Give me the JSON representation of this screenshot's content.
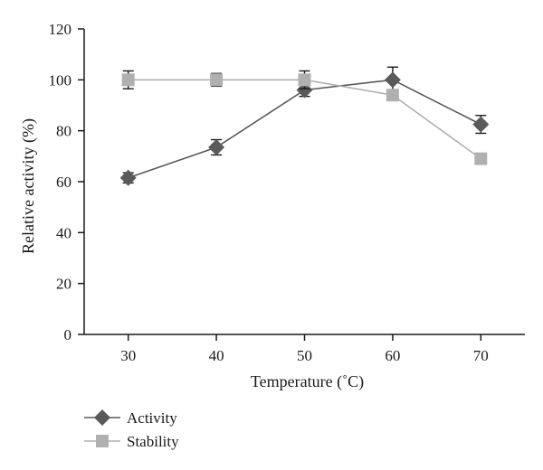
{
  "chart_data": {
    "type": "line",
    "xlabel": "Temperature (˚C)",
    "ylabel": "Relative activity (%)",
    "x": [
      30,
      40,
      50,
      60,
      70
    ],
    "xlim": [
      25,
      75
    ],
    "ylim": [
      0,
      120
    ],
    "yticks": [
      0,
      20,
      40,
      60,
      80,
      100,
      120
    ],
    "grid": false,
    "legend_position": "bottom-left",
    "series": [
      {
        "name": "Activity",
        "marker": "diamond",
        "color": "#5a5a5a",
        "values": [
          61.5,
          73.5,
          96,
          100,
          82.5
        ],
        "errors": [
          2,
          3,
          2.5,
          5,
          3.5
        ]
      },
      {
        "name": "Stability",
        "marker": "square",
        "color": "#b0b0b0",
        "values": [
          100,
          100,
          100,
          94,
          69
        ],
        "errors": [
          3.5,
          2.5,
          3.5,
          0,
          0
        ]
      }
    ]
  }
}
